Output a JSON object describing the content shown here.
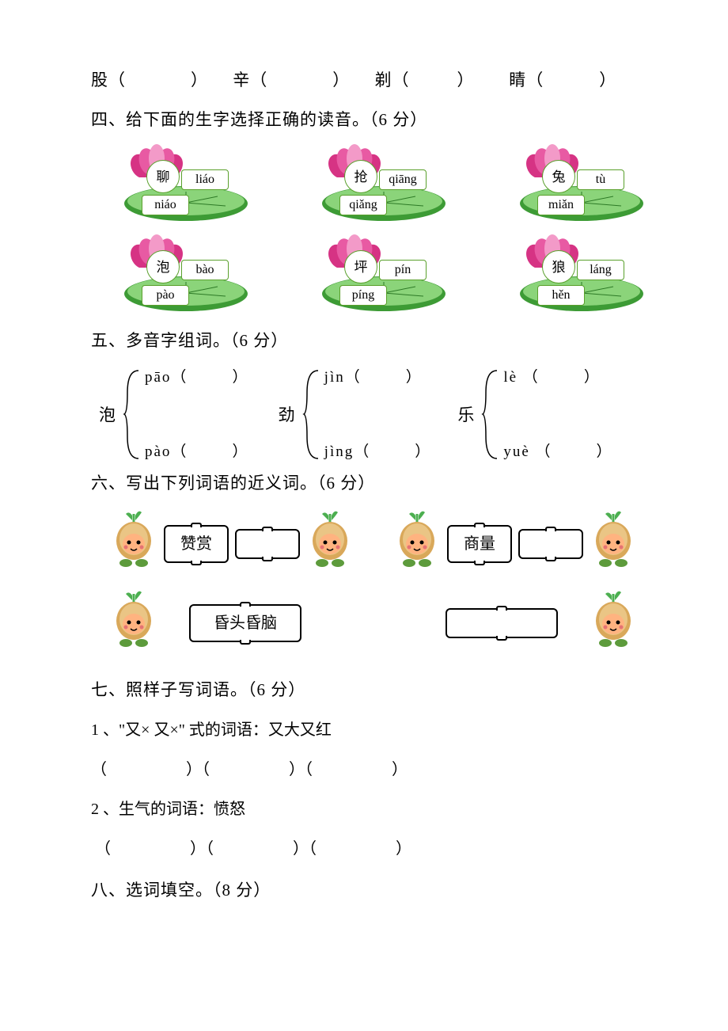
{
  "line_q3": {
    "c1": "股（",
    "c1b": "）",
    "c2": "辛（",
    "c2b": "）",
    "c3": "剃（",
    "c3b": "）",
    "c4": "睛（",
    "c4b": "）"
  },
  "sec4": {
    "title": "四、给下面的生字选择正确的读音。（6 分）",
    "items": [
      {
        "char": "聊",
        "upper": "liáo",
        "lower": "niáo"
      },
      {
        "char": "抢",
        "upper": "qiāng",
        "lower": "qiǎng"
      },
      {
        "char": "兔",
        "upper": "tù",
        "lower": "miǎn"
      },
      {
        "char": "泡",
        "upper": "bào",
        "lower": "pào"
      },
      {
        "char": "坪",
        "upper": "pín",
        "lower": "píng"
      },
      {
        "char": "狼",
        "upper": "láng",
        "lower": "hěn"
      }
    ],
    "colors": {
      "petal_outer": "#d63384",
      "petal_mid": "#e85aa3",
      "petal_inner": "#f39ac8",
      "stamen": "#f5d742",
      "leaf_dark": "#3d9b35",
      "leaf_light": "#8bd47a",
      "leaf_line": "#2d7a26",
      "border": "#5aa02c"
    }
  },
  "sec5": {
    "title": "五、多音字组词。（6 分）",
    "groups": [
      {
        "char": "泡",
        "top": "pāo（",
        "top_close": "）",
        "bot": "pào（",
        "bot_close": "）"
      },
      {
        "char": "劲",
        "top": "jìn（",
        "top_close": "）",
        "bot": "jìng（",
        "bot_close": "）"
      },
      {
        "char": "乐",
        "top": "lè （",
        "top_close": "）",
        "bot": "yuè （",
        "bot_close": "）"
      }
    ]
  },
  "sec6": {
    "title": "六、写出下列词语的近义词。（6 分）",
    "row1": [
      {
        "word": "赞赏"
      },
      {
        "word": ""
      },
      {
        "word": "商量"
      },
      {
        "word": ""
      }
    ],
    "row2": [
      {
        "word": "昏头昏脑"
      },
      {
        "word": ""
      }
    ],
    "onion_colors": {
      "bulb": "#d9a85a",
      "bulb_light": "#eac585",
      "sprout": "#4caf50",
      "face": "#ffb380",
      "eye": "#000000",
      "blush": "#e57373",
      "foot": "#5d9b3c"
    }
  },
  "sec7": {
    "title": "七、照样子写词语。（6 分）",
    "line1": "1 、\"又×  又×\" 式的词语：又大又红",
    "blanks1": "（                    ）（                    ）（                    ）",
    "line2": " 2 、生气的词语：愤怒",
    "blanks2": " （                    ）（                    ）（                    ）"
  },
  "sec8": {
    "title": "八、选词填空。（8 分）"
  }
}
